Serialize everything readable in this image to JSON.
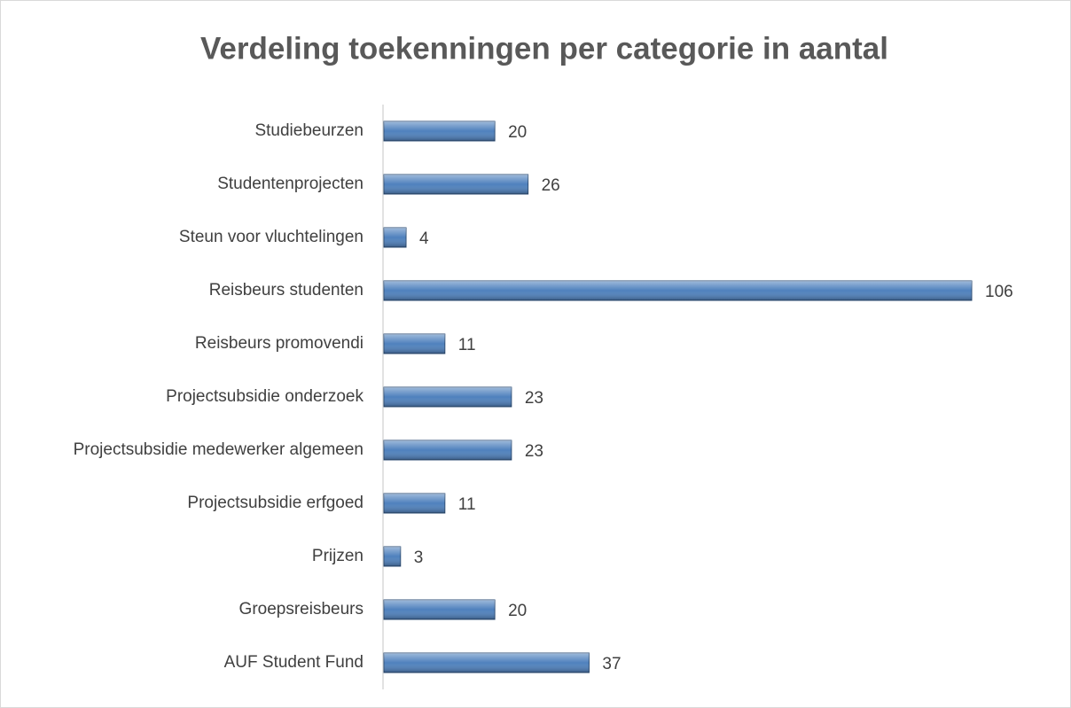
{
  "chart_data": {
    "type": "bar",
    "orientation": "horizontal",
    "title": "Verdeling toekenningen per categorie in aantal",
    "categories": [
      "Studiebeurzen",
      "Studentenprojecten",
      "Steun voor vluchtelingen",
      "Reisbeurs studenten",
      "Reisbeurs promovendi",
      "Projectsubsidie onderzoek",
      "Projectsubsidie medewerker algemeen",
      "Projectsubsidie erfgoed",
      "Prijzen",
      "Groepsreisbeurs",
      "AUF Student Fund"
    ],
    "values": [
      20,
      26,
      4,
      106,
      11,
      23,
      23,
      11,
      3,
      20,
      37
    ],
    "color": "#4f81bd"
  }
}
